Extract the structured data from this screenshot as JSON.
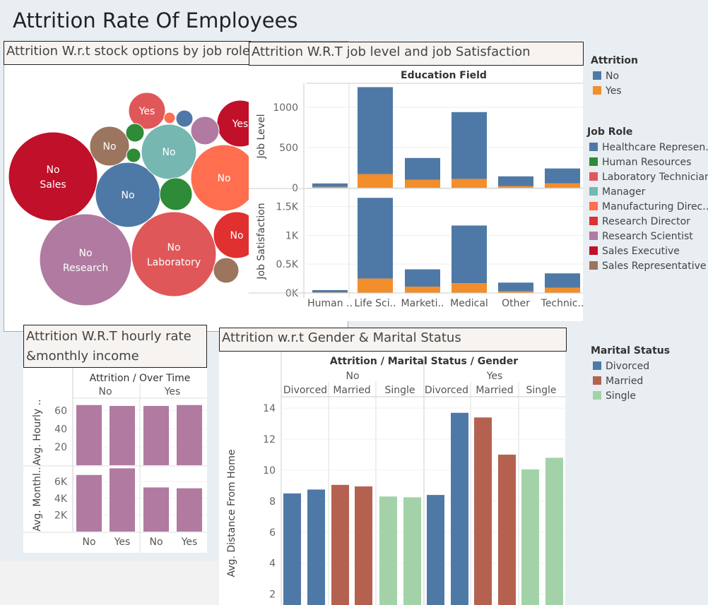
{
  "page_title": "Attrition Rate Of Employees",
  "panels": {
    "bubble_title": "Attrition W.r.t stock options by job role",
    "joblevel_title": "Attrition W.R.T job level and job Satisfaction",
    "hourly_title": "Attrition W.R.T hourly rate &monthly income",
    "gender_title": "Attrition w.r.t Gender & Marital Status"
  },
  "legends": {
    "attrition": {
      "title": "Attrition",
      "items": [
        {
          "label": "No",
          "color": "#4e79a7"
        },
        {
          "label": "Yes",
          "color": "#f28e2b"
        }
      ]
    },
    "job_role": {
      "title": "Job Role",
      "items": [
        {
          "label": "Healthcare Represen..",
          "color": "#4e79a7"
        },
        {
          "label": "Human Resources",
          "color": "#2e8b38"
        },
        {
          "label": "Laboratory Technician",
          "color": "#e05759"
        },
        {
          "label": "Manager",
          "color": "#76b7b2"
        },
        {
          "label": "Manufacturing Direc..",
          "color": "#ff6e4f"
        },
        {
          "label": "Research Director",
          "color": "#e03030"
        },
        {
          "label": "Research Scientist",
          "color": "#b07aa1"
        },
        {
          "label": "Sales Executive",
          "color": "#c0102a"
        },
        {
          "label": "Sales Representative",
          "color": "#9c755f"
        }
      ]
    },
    "marital": {
      "title": "Marital Status",
      "items": [
        {
          "label": "Divorced",
          "color": "#4e79a7"
        },
        {
          "label": "Married",
          "color": "#b5614f"
        },
        {
          "label": "Single",
          "color": "#a3d2a8"
        }
      ]
    }
  },
  "chart_data": [
    {
      "type": "bubble",
      "title": "Attrition W.r.t stock options by job role",
      "bubbles": [
        {
          "role": "Sales Executive",
          "label1": "No",
          "label2": "Sales",
          "size": 1.0,
          "color": "#c0102a"
        },
        {
          "role": "Research Scientist",
          "label1": "No",
          "label2": "Research",
          "size": 1.05,
          "color": "#b07aa1"
        },
        {
          "role": "Laboratory Technician",
          "label1": "No",
          "label2": "Laboratory",
          "size": 0.95,
          "color": "#e05759"
        },
        {
          "role": "Healthcare Representative",
          "label1": "No",
          "label2": "",
          "size": 0.5,
          "color": "#4e79a7"
        },
        {
          "role": "Manager",
          "label1": "No",
          "label2": "",
          "size": 0.37,
          "color": "#76b7b2"
        },
        {
          "role": "Manufacturing Director",
          "label1": "No",
          "label2": "",
          "size": 0.55,
          "color": "#ff6e4f"
        },
        {
          "role": "Research Director",
          "label1": "No",
          "label2": "",
          "size": 0.2,
          "color": "#e03030"
        },
        {
          "role": "Sales Representative",
          "label1": "No",
          "label2": "",
          "size": 0.12,
          "color": "#9c755f"
        },
        {
          "role": "Sales Executive",
          "label1": "Yes",
          "label2": "",
          "size": 0.33,
          "color": "#c0102a"
        },
        {
          "role": "Laboratory Technician",
          "label1": "Yes",
          "label2": "",
          "size": 0.14,
          "color": "#e05759"
        },
        {
          "role": "Research Scientist",
          "label1": "",
          "label2": "",
          "size": 0.1,
          "color": "#b07aa1"
        },
        {
          "role": "Human Resources",
          "label1": "",
          "label2": "",
          "size": 0.13,
          "color": "#2e8b38"
        },
        {
          "role": "Sales Representative",
          "label1": "",
          "label2": "",
          "size": 0.04,
          "color": "#9c755f"
        },
        {
          "role": "Human Resources",
          "label1": "",
          "label2": "",
          "size": 0.03,
          "color": "#2e8b38"
        },
        {
          "role": "Healthcare Representative",
          "label1": "",
          "label2": "",
          "size": 0.02,
          "color": "#4e79a7"
        },
        {
          "role": "Manufacturing Director",
          "label1": "",
          "label2": "",
          "size": 0.03,
          "color": "#ff6e4f"
        },
        {
          "role": "Manager",
          "label1": "",
          "label2": "",
          "size": 0.01,
          "color": "#76b7b2"
        }
      ]
    },
    {
      "type": "bar",
      "stacked": true,
      "header": "Education Field",
      "categories": [
        "Human ..",
        "Life Sci..",
        "Marketi..",
        "Medical",
        "Other",
        "Technic.."
      ],
      "panels": [
        {
          "ylabel": "Job Level",
          "yticks": [
            0,
            500,
            1000
          ],
          "ytick_labels": [
            "0",
            "500",
            "1000"
          ],
          "ylim": [
            0,
            1280
          ],
          "series": [
            {
              "name": "No",
              "values": [
                42,
                1080,
                270,
                830,
                120,
                185
              ]
            },
            {
              "name": "Yes",
              "values": [
                12,
                170,
                100,
                110,
                22,
                55
              ]
            }
          ]
        },
        {
          "ylabel": "Job Satisfaction",
          "yticks": [
            0,
            500,
            1000,
            1500
          ],
          "ytick_labels": [
            "0K",
            "0.5K",
            "1K",
            "1.5K"
          ],
          "ylim": [
            0,
            1800
          ],
          "series": [
            {
              "name": "No",
              "values": [
                40,
                1400,
                300,
                1000,
                150,
                250
              ]
            },
            {
              "name": "Yes",
              "values": [
                10,
                250,
                110,
                170,
                30,
                90
              ]
            }
          ]
        }
      ]
    },
    {
      "type": "bar",
      "header": "Attrition / Over Time",
      "groups": [
        "No",
        "Yes"
      ],
      "categories": [
        "No",
        "Yes",
        "No",
        "Yes"
      ],
      "color": "#b07aa1",
      "panels": [
        {
          "ylabel": "Avg. Hourly ..",
          "yticks": [
            20,
            40,
            60
          ],
          "ytick_labels": [
            "20",
            "40",
            "60"
          ],
          "ylim": [
            0,
            72
          ],
          "values": [
            66,
            65,
            65,
            66
          ]
        },
        {
          "ylabel": "Avg. Monthl..",
          "yticks": [
            2000,
            4000,
            6000
          ],
          "ytick_labels": [
            "2K",
            "4K",
            "6K"
          ],
          "ylim": [
            0,
            7800
          ],
          "values": [
            6800,
            7600,
            5300,
            5200
          ]
        }
      ]
    },
    {
      "type": "bar",
      "header": "Attrition / Marital Status / Gender",
      "groups": [
        "No",
        "Yes"
      ],
      "subgroups": [
        "Divorced",
        "Married",
        "Single",
        "Divorced",
        "Married",
        "Single"
      ],
      "ylabel": "Avg. Distance From Home",
      "yticks": [
        2,
        4,
        6,
        8,
        10,
        12,
        14
      ],
      "ytick_labels": [
        "2",
        "4",
        "6",
        "8",
        "10",
        "12",
        "14"
      ],
      "ylim": [
        1.3,
        14.6
      ],
      "values": [
        8.5,
        8.75,
        9.05,
        8.95,
        8.3,
        8.25,
        8.4,
        13.7,
        13.4,
        11.0,
        10.05,
        10.8
      ],
      "colors": [
        "#4e79a7",
        "#4e79a7",
        "#b5614f",
        "#b5614f",
        "#a3d2a8",
        "#a3d2a8",
        "#4e79a7",
        "#4e79a7",
        "#b5614f",
        "#b5614f",
        "#a3d2a8",
        "#a3d2a8"
      ]
    }
  ]
}
